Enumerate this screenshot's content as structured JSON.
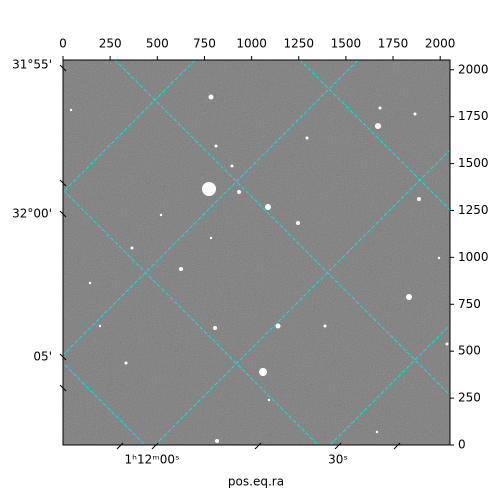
{
  "chart_data": {
    "type": "image",
    "xlabel": "pos.eq.ra",
    "xlim": [
      0,
      2052
    ],
    "ylim": [
      0,
      2052
    ],
    "xticks": [
      0,
      250,
      500,
      750,
      1000,
      1250,
      1500,
      1750,
      2000
    ],
    "yticks": [
      0,
      250,
      500,
      750,
      1000,
      1250,
      1500,
      1750,
      2000
    ],
    "ra_tick_labels": [
      "1ʰ12ᵐ00ˢ",
      "30ˢ"
    ],
    "dec_tick_labels": [
      "31°55'",
      "32°00'",
      "05'"
    ],
    "grid_color": "#00e5e5"
  }
}
